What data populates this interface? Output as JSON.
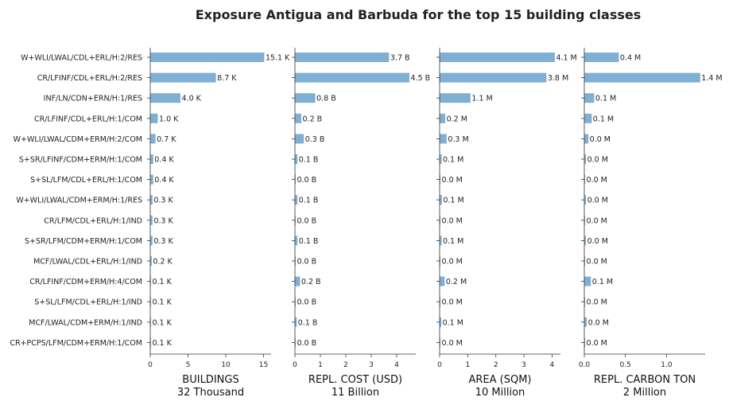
{
  "chart_data": {
    "type": "bar",
    "orientation": "horizontal",
    "title": "Exposure Antigua and Barbuda for the top 15 building classes",
    "bar_color": "#7fb0d3",
    "categories": [
      "W+WLI/LWAL/CDL+ERL/H:2/RES",
      "CR/LFINF/CDL+ERL/H:2/RES",
      "INF/LN/CDN+ERN/H:1/RES",
      "CR/LFINF/CDL+ERL/H:1/COM",
      "W+WLI/LWAL/CDM+ERM/H:2/COM",
      "S+SR/LFINF/CDM+ERM/H:1/COM",
      "S+SL/LFM/CDL+ERL/H:1/COM",
      "W+WLI/LWAL/CDM+ERM/H:1/RES",
      "CR/LFM/CDL+ERL/H:1/IND",
      "S+SR/LFM/CDM+ERM/H:1/COM",
      "MCF/LWAL/CDL+ERL/H:1/IND",
      "CR/LFINF/CDM+ERM/H:4/COM",
      "S+SL/LFM/CDL+ERL/H:1/IND",
      "MCF/LWAL/CDM+ERM/H:1/IND",
      "CR+PCPS/LFM/CDM+ERM/H:1/COM"
    ],
    "panels": [
      {
        "xlabel": "BUILDINGS",
        "xsublabel": "32 Thousand",
        "xlim": [
          0,
          16
        ],
        "ticks": [
          0,
          5,
          10,
          15
        ],
        "tick_labels": [
          "0",
          "5",
          "10",
          "15"
        ],
        "values": [
          15.1,
          8.7,
          4.0,
          1.0,
          0.7,
          0.4,
          0.4,
          0.3,
          0.3,
          0.3,
          0.2,
          0.1,
          0.1,
          0.1,
          0.1
        ],
        "labels": [
          "15.1 K",
          "8.7 K",
          "4.0 K",
          "1.0 K",
          "0.7 K",
          "0.4 K",
          "0.4 K",
          "0.3 K",
          "0.3 K",
          "0.3 K",
          "0.2 K",
          "0.1 K",
          "0.1 K",
          "0.1 K",
          "0.1 K"
        ]
      },
      {
        "xlabel": "REPL. COST (USD)",
        "xsublabel": "11 Billion",
        "xlim": [
          0,
          4.75
        ],
        "ticks": [
          0,
          1,
          2,
          3,
          4
        ],
        "tick_labels": [
          "0",
          "1",
          "2",
          "3",
          "4"
        ],
        "values": [
          3.7,
          4.5,
          0.8,
          0.25,
          0.35,
          0.1,
          0.03,
          0.1,
          0.03,
          0.1,
          0.03,
          0.2,
          0.03,
          0.07,
          0.03
        ],
        "labels": [
          "3.7 B",
          "4.5 B",
          "0.8 B",
          "0.2 B",
          "0.3 B",
          "0.1 B",
          "0.0 B",
          "0.1 B",
          "0.0 B",
          "0.1 B",
          "0.0 B",
          "0.2 B",
          "0.0 B",
          "0.1 B",
          "0.0 B"
        ]
      },
      {
        "xlabel": "AREA (SQM)",
        "xsublabel": "10 Million",
        "xlim": [
          0,
          4.3
        ],
        "ticks": [
          0,
          1,
          2,
          3,
          4
        ],
        "tick_labels": [
          "0",
          "1",
          "2",
          "3",
          "4"
        ],
        "values": [
          4.1,
          3.8,
          1.1,
          0.2,
          0.25,
          0.07,
          0.03,
          0.08,
          0.03,
          0.07,
          0.03,
          0.18,
          0.03,
          0.06,
          0.03
        ],
        "labels": [
          "4.1 M",
          "3.8 M",
          "1.1 M",
          "0.2 M",
          "0.3 M",
          "0.1 M",
          "0.0 M",
          "0.1 M",
          "0.0 M",
          "0.1 M",
          "0.0 M",
          "0.2 M",
          "0.0 M",
          "0.1 M",
          "0.0 M"
        ]
      },
      {
        "xlabel": "REPL. CARBON TON",
        "xsublabel": "2 Million",
        "xlim": [
          0,
          1.47
        ],
        "ticks": [
          0,
          0.5,
          1.0
        ],
        "tick_labels": [
          "0.0",
          "0.5",
          "1.0"
        ],
        "values": [
          0.42,
          1.41,
          0.12,
          0.09,
          0.05,
          0.02,
          0.01,
          0.02,
          0.01,
          0.02,
          0.01,
          0.08,
          0.01,
          0.03,
          0.01
        ],
        "labels": [
          "0.4 M",
          "1.4 M",
          "0.1 M",
          "0.1 M",
          "0.0 M",
          "0.0 M",
          "0.0 M",
          "0.0 M",
          "0.0 M",
          "0.0 M",
          "0.0 M",
          "0.1 M",
          "0.0 M",
          "0.0 M",
          "0.0 M"
        ]
      }
    ]
  }
}
